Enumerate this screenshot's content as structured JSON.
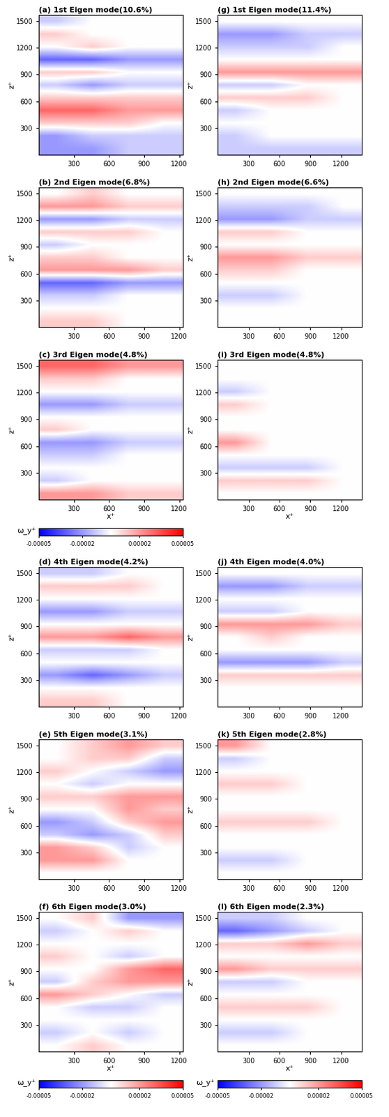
{
  "chart_data": [
    {
      "type": "heatmap",
      "title": "(a) 1st Eigen mode(10.6%)",
      "ylabel": "z⁺",
      "xlim": [
        0,
        1230
      ],
      "ylim": [
        0,
        1570
      ],
      "xticks": [
        300,
        600,
        900,
        1200
      ],
      "yticks": [
        300,
        600,
        900,
        1200,
        1500
      ],
      "cells": [
        [
          -2e-05,
          -2e-05,
          -1e-05,
          -1e-05
        ],
        [
          -2e-05,
          -1e-05,
          -1e-05,
          -1e-05
        ],
        [
          1e-05,
          1e-05,
          1e-05,
          0.0
        ],
        [
          3e-05,
          3e-05,
          2e-05,
          2e-05
        ],
        [
          1e-05,
          1e-05,
          1e-05,
          1e-05
        ],
        [
          -1e-05,
          -2e-05,
          -1e-05,
          -1e-05
        ],
        [
          1e-05,
          1e-05,
          0.0,
          0.0
        ],
        [
          -3e-05,
          -3e-05,
          -2e-05,
          -2e-05
        ],
        [
          0.0,
          1e-05,
          0.0,
          0.0
        ],
        [
          1e-05,
          0.0,
          0.0,
          0.0
        ],
        [
          -1e-05,
          0.0,
          0.0,
          0.0
        ]
      ]
    },
    {
      "type": "heatmap",
      "title": "(b) 2nd Eigen mode(6.8%)",
      "ylabel": "z⁺",
      "xlim": [
        0,
        1230
      ],
      "ylim": [
        0,
        1570
      ],
      "xticks": [
        300,
        600,
        900,
        1200
      ],
      "yticks": [
        300,
        600,
        900,
        1200,
        1500
      ],
      "cells": [
        [
          1e-05,
          1e-05,
          0.0,
          0.0
        ],
        [
          0.0,
          0.0,
          0.0,
          0.0
        ],
        [
          -1e-05,
          -1e-05,
          0.0,
          0.0
        ],
        [
          -3e-05,
          -3e-05,
          -2e-05,
          -2e-05
        ],
        [
          2e-05,
          2e-05,
          2e-05,
          1e-05
        ],
        [
          1e-05,
          1e-05,
          0.0,
          0.0
        ],
        [
          -1e-05,
          0.0,
          0.0,
          0.0
        ],
        [
          1e-05,
          1e-05,
          1e-05,
          0.0
        ],
        [
          -2e-05,
          -2e-05,
          -1e-05,
          -1e-05
        ],
        [
          2e-05,
          2e-05,
          1e-05,
          1e-05
        ],
        [
          0.0,
          1e-05,
          0.0,
          0.0
        ]
      ]
    },
    {
      "type": "heatmap",
      "title": "(c) 3rd Eigen mode(4.8%)",
      "ylabel": "z⁺",
      "xlabel": "x⁺",
      "xlim": [
        0,
        1230
      ],
      "ylim": [
        0,
        1570
      ],
      "xticks": [
        300,
        600,
        900,
        1200
      ],
      "yticks": [
        300,
        600,
        900,
        1200,
        1500
      ],
      "cells": [
        [
          2e-05,
          2e-05,
          1e-05,
          1e-05
        ],
        [
          -1e-05,
          0.0,
          0.0,
          0.0
        ],
        [
          0.0,
          0.0,
          0.0,
          0.0
        ],
        [
          -1e-05,
          -1e-05,
          0.0,
          0.0
        ],
        [
          -2e-05,
          -2e-05,
          -1e-05,
          -1e-05
        ],
        [
          1e-05,
          0.0,
          0.0,
          0.0
        ],
        [
          0.0,
          0.0,
          0.0,
          0.0
        ],
        [
          -2e-05,
          -2e-05,
          -1e-05,
          -1e-05
        ],
        [
          0.0,
          0.0,
          0.0,
          0.0
        ],
        [
          1e-05,
          1e-05,
          0.0,
          0.0
        ],
        [
          3e-05,
          3e-05,
          2e-05,
          2e-05
        ]
      ],
      "colorbar": {
        "label": "ω_y⁺",
        "range": [
          -5e-05,
          5e-05
        ],
        "ticks": [
          {
            "value": -5e-05,
            "label": "-0.00005"
          },
          {
            "value": -2e-05,
            "label": "-0.00002"
          },
          {
            "value": 2e-05,
            "label": "0.00002"
          },
          {
            "value": 5e-05,
            "label": "0.00005"
          }
        ]
      }
    },
    {
      "type": "heatmap",
      "title": "(d) 4th Eigen mode(4.2%)",
      "ylabel": "z⁺",
      "xlim": [
        0,
        1230
      ],
      "ylim": [
        0,
        1570
      ],
      "xticks": [
        300,
        600,
        900,
        1200
      ],
      "yticks": [
        300,
        600,
        900,
        1200,
        1500
      ],
      "cells": [
        [
          1e-05,
          1e-05,
          0.0,
          0.0
        ],
        [
          0.0,
          0.0,
          0.0,
          0.0
        ],
        [
          -2e-05,
          -3e-05,
          -2e-05,
          -1e-05
        ],
        [
          0.0,
          0.0,
          0.0,
          0.0
        ],
        [
          -1e-05,
          -1e-05,
          -1e-05,
          0.0
        ],
        [
          2e-05,
          2e-05,
          3e-05,
          2e-05
        ],
        [
          0.0,
          0.0,
          0.0,
          0.0
        ],
        [
          -2e-05,
          -2e-05,
          -1e-05,
          -1e-05
        ],
        [
          0.0,
          0.0,
          0.0,
          0.0
        ],
        [
          1e-05,
          1e-05,
          1e-05,
          0.0
        ],
        [
          -1e-05,
          -1e-05,
          0.0,
          0.0
        ]
      ]
    },
    {
      "type": "heatmap",
      "title": "(e) 5th Eigen mode(3.1%)",
      "ylabel": "z⁺",
      "xlim": [
        0,
        1230
      ],
      "ylim": [
        0,
        1570
      ],
      "xticks": [
        300,
        600,
        900,
        1200
      ],
      "yticks": [
        300,
        600,
        900,
        1200,
        1500
      ],
      "cells": [
        [
          0.0,
          0.0,
          0.0,
          0.0
        ],
        [
          2e-05,
          2e-05,
          0.0,
          0.0
        ],
        [
          2e-05,
          1e-05,
          -1e-05,
          0.0
        ],
        [
          -1e-05,
          -2e-05,
          -1e-05,
          1e-05
        ],
        [
          -2e-05,
          -1e-05,
          1e-05,
          2e-05
        ],
        [
          0.0,
          0.0,
          2e-05,
          1e-05
        ],
        [
          1e-05,
          1e-05,
          2e-05,
          2e-05
        ],
        [
          0.0,
          -1e-05,
          0.0,
          0.0
        ],
        [
          1e-05,
          0.0,
          -1e-05,
          -2e-05
        ],
        [
          0.0,
          1e-05,
          1e-05,
          -1e-05
        ],
        [
          0.0,
          1e-05,
          2e-05,
          1e-05
        ]
      ]
    },
    {
      "type": "heatmap",
      "title": "(f) 6th Eigen mode(3.0%)",
      "ylabel": "z⁺",
      "xlabel": "x⁺",
      "xlim": [
        0,
        1230
      ],
      "ylim": [
        0,
        1570
      ],
      "xticks": [
        300,
        600,
        900,
        1200
      ],
      "yticks": [
        300,
        600,
        900,
        1200,
        1500
      ],
      "cells": [
        [
          0.0,
          1e-05,
          0.0,
          0.0
        ],
        [
          -1e-05,
          0.0,
          -1e-05,
          0.0
        ],
        [
          0.0,
          0.0,
          0.0,
          0.0
        ],
        [
          0.0,
          -1e-05,
          -1e-05,
          0.0
        ],
        [
          2e-05,
          1e-05,
          0.0,
          -1e-05
        ],
        [
          -1e-05,
          1e-05,
          2e-05,
          2e-05
        ],
        [
          0.0,
          0.0,
          2e-05,
          3e-05
        ],
        [
          1e-05,
          0.0,
          -1e-05,
          0.0
        ],
        [
          0.0,
          0.0,
          0.0,
          0.0
        ],
        [
          -1e-05,
          0.0,
          1e-05,
          0.0
        ],
        [
          0.0,
          1e-05,
          -2e-05,
          -2e-05
        ]
      ],
      "colorbar": {
        "label": "ω_y⁺",
        "range": [
          -5e-05,
          5e-05
        ],
        "ticks": [
          {
            "value": -5e-05,
            "label": "-0.00005"
          },
          {
            "value": -2e-05,
            "label": "-0.00002"
          },
          {
            "value": 2e-05,
            "label": "0.00002"
          },
          {
            "value": 5e-05,
            "label": "0.00005"
          }
        ]
      }
    },
    {
      "type": "heatmap",
      "title": "(g) 1st Eigen mode(11.4%)",
      "ylabel": "z⁺",
      "xlim": [
        0,
        1400
      ],
      "ylim": [
        0,
        1570
      ],
      "xticks": [
        300,
        600,
        900,
        1200
      ],
      "yticks": [
        300,
        600,
        900,
        1200,
        1500
      ],
      "cells": [
        [
          -1e-05,
          -1e-05,
          -1e-05,
          -1e-05
        ],
        [
          -1e-05,
          0.0,
          0.0,
          0.0
        ],
        [
          0.0,
          0.0,
          0.0,
          0.0
        ],
        [
          -1e-05,
          0.0,
          0.0,
          0.0
        ],
        [
          1e-05,
          1e-05,
          1e-05,
          0.0
        ],
        [
          -1e-05,
          -1e-05,
          0.0,
          0.0
        ],
        [
          2e-05,
          2e-05,
          2e-05,
          2e-05
        ],
        [
          0.0,
          0.0,
          0.0,
          0.0
        ],
        [
          -1e-05,
          -1e-05,
          -1e-05,
          0.0
        ],
        [
          -2e-05,
          -2e-05,
          -1e-05,
          -1e-05
        ],
        [
          0.0,
          0.0,
          0.0,
          0.0
        ]
      ]
    },
    {
      "type": "heatmap",
      "title": "(h) 2nd Eigen mode(6.6%)",
      "ylabel": "z⁺",
      "xlim": [
        0,
        1400
      ],
      "ylim": [
        0,
        1570
      ],
      "xticks": [
        300,
        600,
        900,
        1200
      ],
      "yticks": [
        300,
        600,
        900,
        1200,
        1500
      ],
      "cells": [
        [
          0.0,
          0.0,
          0.0,
          0.0
        ],
        [
          0.0,
          0.0,
          0.0,
          0.0
        ],
        [
          -1e-05,
          -1e-05,
          0.0,
          0.0
        ],
        [
          0.0,
          0.0,
          0.0,
          0.0
        ],
        [
          1e-05,
          1e-05,
          0.0,
          0.0
        ],
        [
          2e-05,
          2e-05,
          1e-05,
          1e-05
        ],
        [
          0.0,
          0.0,
          0.0,
          0.0
        ],
        [
          1e-05,
          1e-05,
          0.0,
          0.0
        ],
        [
          -2e-05,
          -2e-05,
          -1e-05,
          -1e-05
        ],
        [
          -1e-05,
          -1e-05,
          -1e-05,
          0.0
        ],
        [
          0.0,
          0.0,
          0.0,
          0.0
        ]
      ]
    },
    {
      "type": "heatmap",
      "title": "(i) 3rd Eigen mode(4.8%)",
      "ylabel": "z⁺",
      "xlabel": "x⁺",
      "xlim": [
        0,
        1400
      ],
      "ylim": [
        0,
        1570
      ],
      "xticks": [
        300,
        600,
        900,
        1200
      ],
      "yticks": [
        300,
        600,
        900,
        1200,
        1500
      ],
      "cells": [
        [
          0.0,
          0.0,
          0.0,
          0.0
        ],
        [
          1e-05,
          1e-05,
          1e-05,
          0.0
        ],
        [
          -1e-05,
          -1e-05,
          -1e-05,
          0.0
        ],
        [
          0.0,
          0.0,
          0.0,
          0.0
        ],
        [
          2e-05,
          0.0,
          0.0,
          0.0
        ],
        [
          0.0,
          0.0,
          0.0,
          0.0
        ],
        [
          0.0,
          0.0,
          0.0,
          0.0
        ],
        [
          1e-05,
          0.0,
          0.0,
          0.0
        ],
        [
          -1e-05,
          0.0,
          0.0,
          0.0
        ],
        [
          0.0,
          0.0,
          0.0,
          0.0
        ],
        [
          0.0,
          0.0,
          0.0,
          0.0
        ]
      ]
    },
    {
      "type": "heatmap",
      "title": "(j) 4th Eigen mode(4.0%)",
      "ylabel": "z⁺",
      "xlim": [
        0,
        1400
      ],
      "ylim": [
        0,
        1570
      ],
      "xticks": [
        300,
        600,
        900,
        1200
      ],
      "yticks": [
        300,
        600,
        900,
        1200,
        1500
      ],
      "cells": [
        [
          0.0,
          0.0,
          0.0,
          0.0
        ],
        [
          0.0,
          0.0,
          0.0,
          0.0
        ],
        [
          1e-05,
          1e-05,
          1e-05,
          1e-05
        ],
        [
          -2e-05,
          -2e-05,
          -2e-05,
          -1e-05
        ],
        [
          0.0,
          0.0,
          0.0,
          0.0
        ],
        [
          0.0,
          1e-05,
          0.0,
          0.0
        ],
        [
          2e-05,
          2e-05,
          2e-05,
          1e-05
        ],
        [
          -1e-05,
          -1e-05,
          0.0,
          0.0
        ],
        [
          0.0,
          0.0,
          0.0,
          0.0
        ],
        [
          -2e-05,
          -2e-05,
          -1e-05,
          -1e-05
        ],
        [
          0.0,
          0.0,
          0.0,
          0.0
        ]
      ]
    },
    {
      "type": "heatmap",
      "title": "(k) 5th Eigen mode(2.8%)",
      "ylabel": "z⁺",
      "xlim": [
        0,
        1400
      ],
      "ylim": [
        0,
        1570
      ],
      "xticks": [
        300,
        600,
        900,
        1200
      ],
      "yticks": [
        300,
        600,
        900,
        1200,
        1500
      ],
      "cells": [
        [
          0.0,
          0.0,
          0.0,
          0.0
        ],
        [
          -1e-05,
          -1e-05,
          0.0,
          0.0
        ],
        [
          0.0,
          0.0,
          0.0,
          0.0
        ],
        [
          0.0,
          0.0,
          0.0,
          0.0
        ],
        [
          1e-05,
          1e-05,
          1e-05,
          0.0
        ],
        [
          0.0,
          0.0,
          0.0,
          0.0
        ],
        [
          0.0,
          0.0,
          0.0,
          0.0
        ],
        [
          1e-05,
          1e-05,
          0.0,
          0.0
        ],
        [
          0.0,
          0.0,
          0.0,
          0.0
        ],
        [
          -1e-05,
          0.0,
          0.0,
          0.0
        ],
        [
          2e-05,
          0.0,
          0.0,
          0.0
        ]
      ]
    },
    {
      "type": "heatmap",
      "title": "(l) 6th Eigen mode(2.3%)",
      "ylabel": "z⁺",
      "xlabel": "x⁺",
      "xlim": [
        0,
        1400
      ],
      "ylim": [
        0,
        1570
      ],
      "xticks": [
        300,
        600,
        900,
        1200
      ],
      "yticks": [
        300,
        600,
        900,
        1200,
        1500
      ],
      "cells": [
        [
          0.0,
          0.0,
          0.0,
          0.0
        ],
        [
          -1e-05,
          -1e-05,
          0.0,
          0.0
        ],
        [
          0.0,
          0.0,
          0.0,
          0.0
        ],
        [
          1e-05,
          1e-05,
          1e-05,
          0.0
        ],
        [
          0.0,
          0.0,
          0.0,
          0.0
        ],
        [
          -1e-05,
          -1e-05,
          0.0,
          0.0
        ],
        [
          2e-05,
          1e-05,
          1e-05,
          1e-05
        ],
        [
          0.0,
          0.0,
          0.0,
          0.0
        ],
        [
          1e-05,
          1e-05,
          2e-05,
          1e-05
        ],
        [
          -3e-05,
          -2e-05,
          -1e-05,
          0.0
        ],
        [
          -1e-05,
          -1e-05,
          0.0,
          0.0
        ]
      ],
      "colorbar": {
        "label": "ω_y⁺",
        "range": [
          -5e-05,
          5e-05
        ],
        "ticks": [
          {
            "value": -5e-05,
            "label": "-0.00005"
          },
          {
            "value": -2e-05,
            "label": "-0.00002"
          },
          {
            "value": 2e-05,
            "label": "0.00002"
          },
          {
            "value": 5e-05,
            "label": "0.00005"
          }
        ]
      }
    }
  ]
}
